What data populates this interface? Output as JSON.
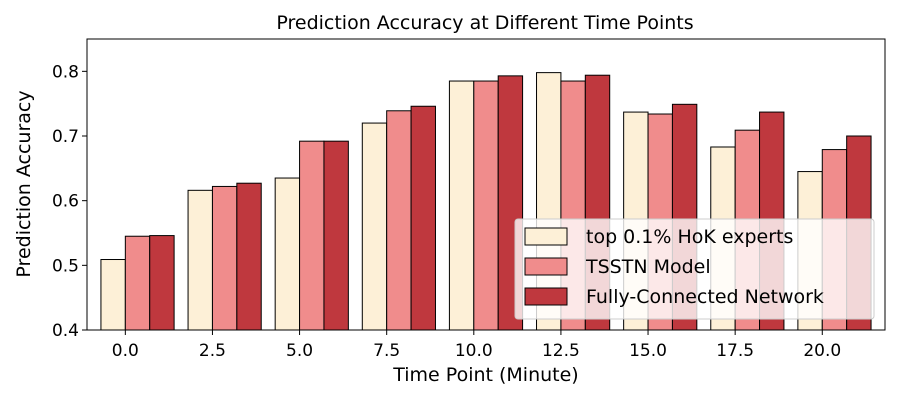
{
  "chart_data": {
    "type": "bar",
    "title": "Prediction Accuracy at Different Time Points",
    "xlabel": "Time Point (Minute)",
    "ylabel": "Prediction Accuracy",
    "categories": [
      "0.0",
      "2.5",
      "5.0",
      "7.5",
      "10.0",
      "12.5",
      "15.0",
      "17.5",
      "20.0"
    ],
    "x": [
      0.0,
      2.5,
      5.0,
      7.5,
      10.0,
      12.5,
      15.0,
      17.5,
      20.0
    ],
    "xlim": [
      -1.1,
      21.8
    ],
    "ylim": [
      0.4,
      0.85
    ],
    "yticks": [
      "0.4",
      "0.5",
      "0.6",
      "0.7",
      "0.8"
    ],
    "grid": false,
    "legend_position": "lower-right",
    "series": [
      {
        "name": "top 0.1% HoK experts",
        "color": "#fdf0d7",
        "values": [
          0.509,
          0.616,
          0.635,
          0.72,
          0.785,
          0.798,
          0.737,
          0.683,
          0.645
        ]
      },
      {
        "name": "TSSTN Model",
        "color": "#f08c8c",
        "values": [
          0.545,
          0.622,
          0.692,
          0.739,
          0.785,
          0.785,
          0.734,
          0.709,
          0.679
        ]
      },
      {
        "name": "Fully-Connected Network",
        "color": "#bf383e",
        "values": [
          0.546,
          0.627,
          0.692,
          0.746,
          0.793,
          0.794,
          0.749,
          0.737,
          0.7
        ]
      }
    ]
  }
}
